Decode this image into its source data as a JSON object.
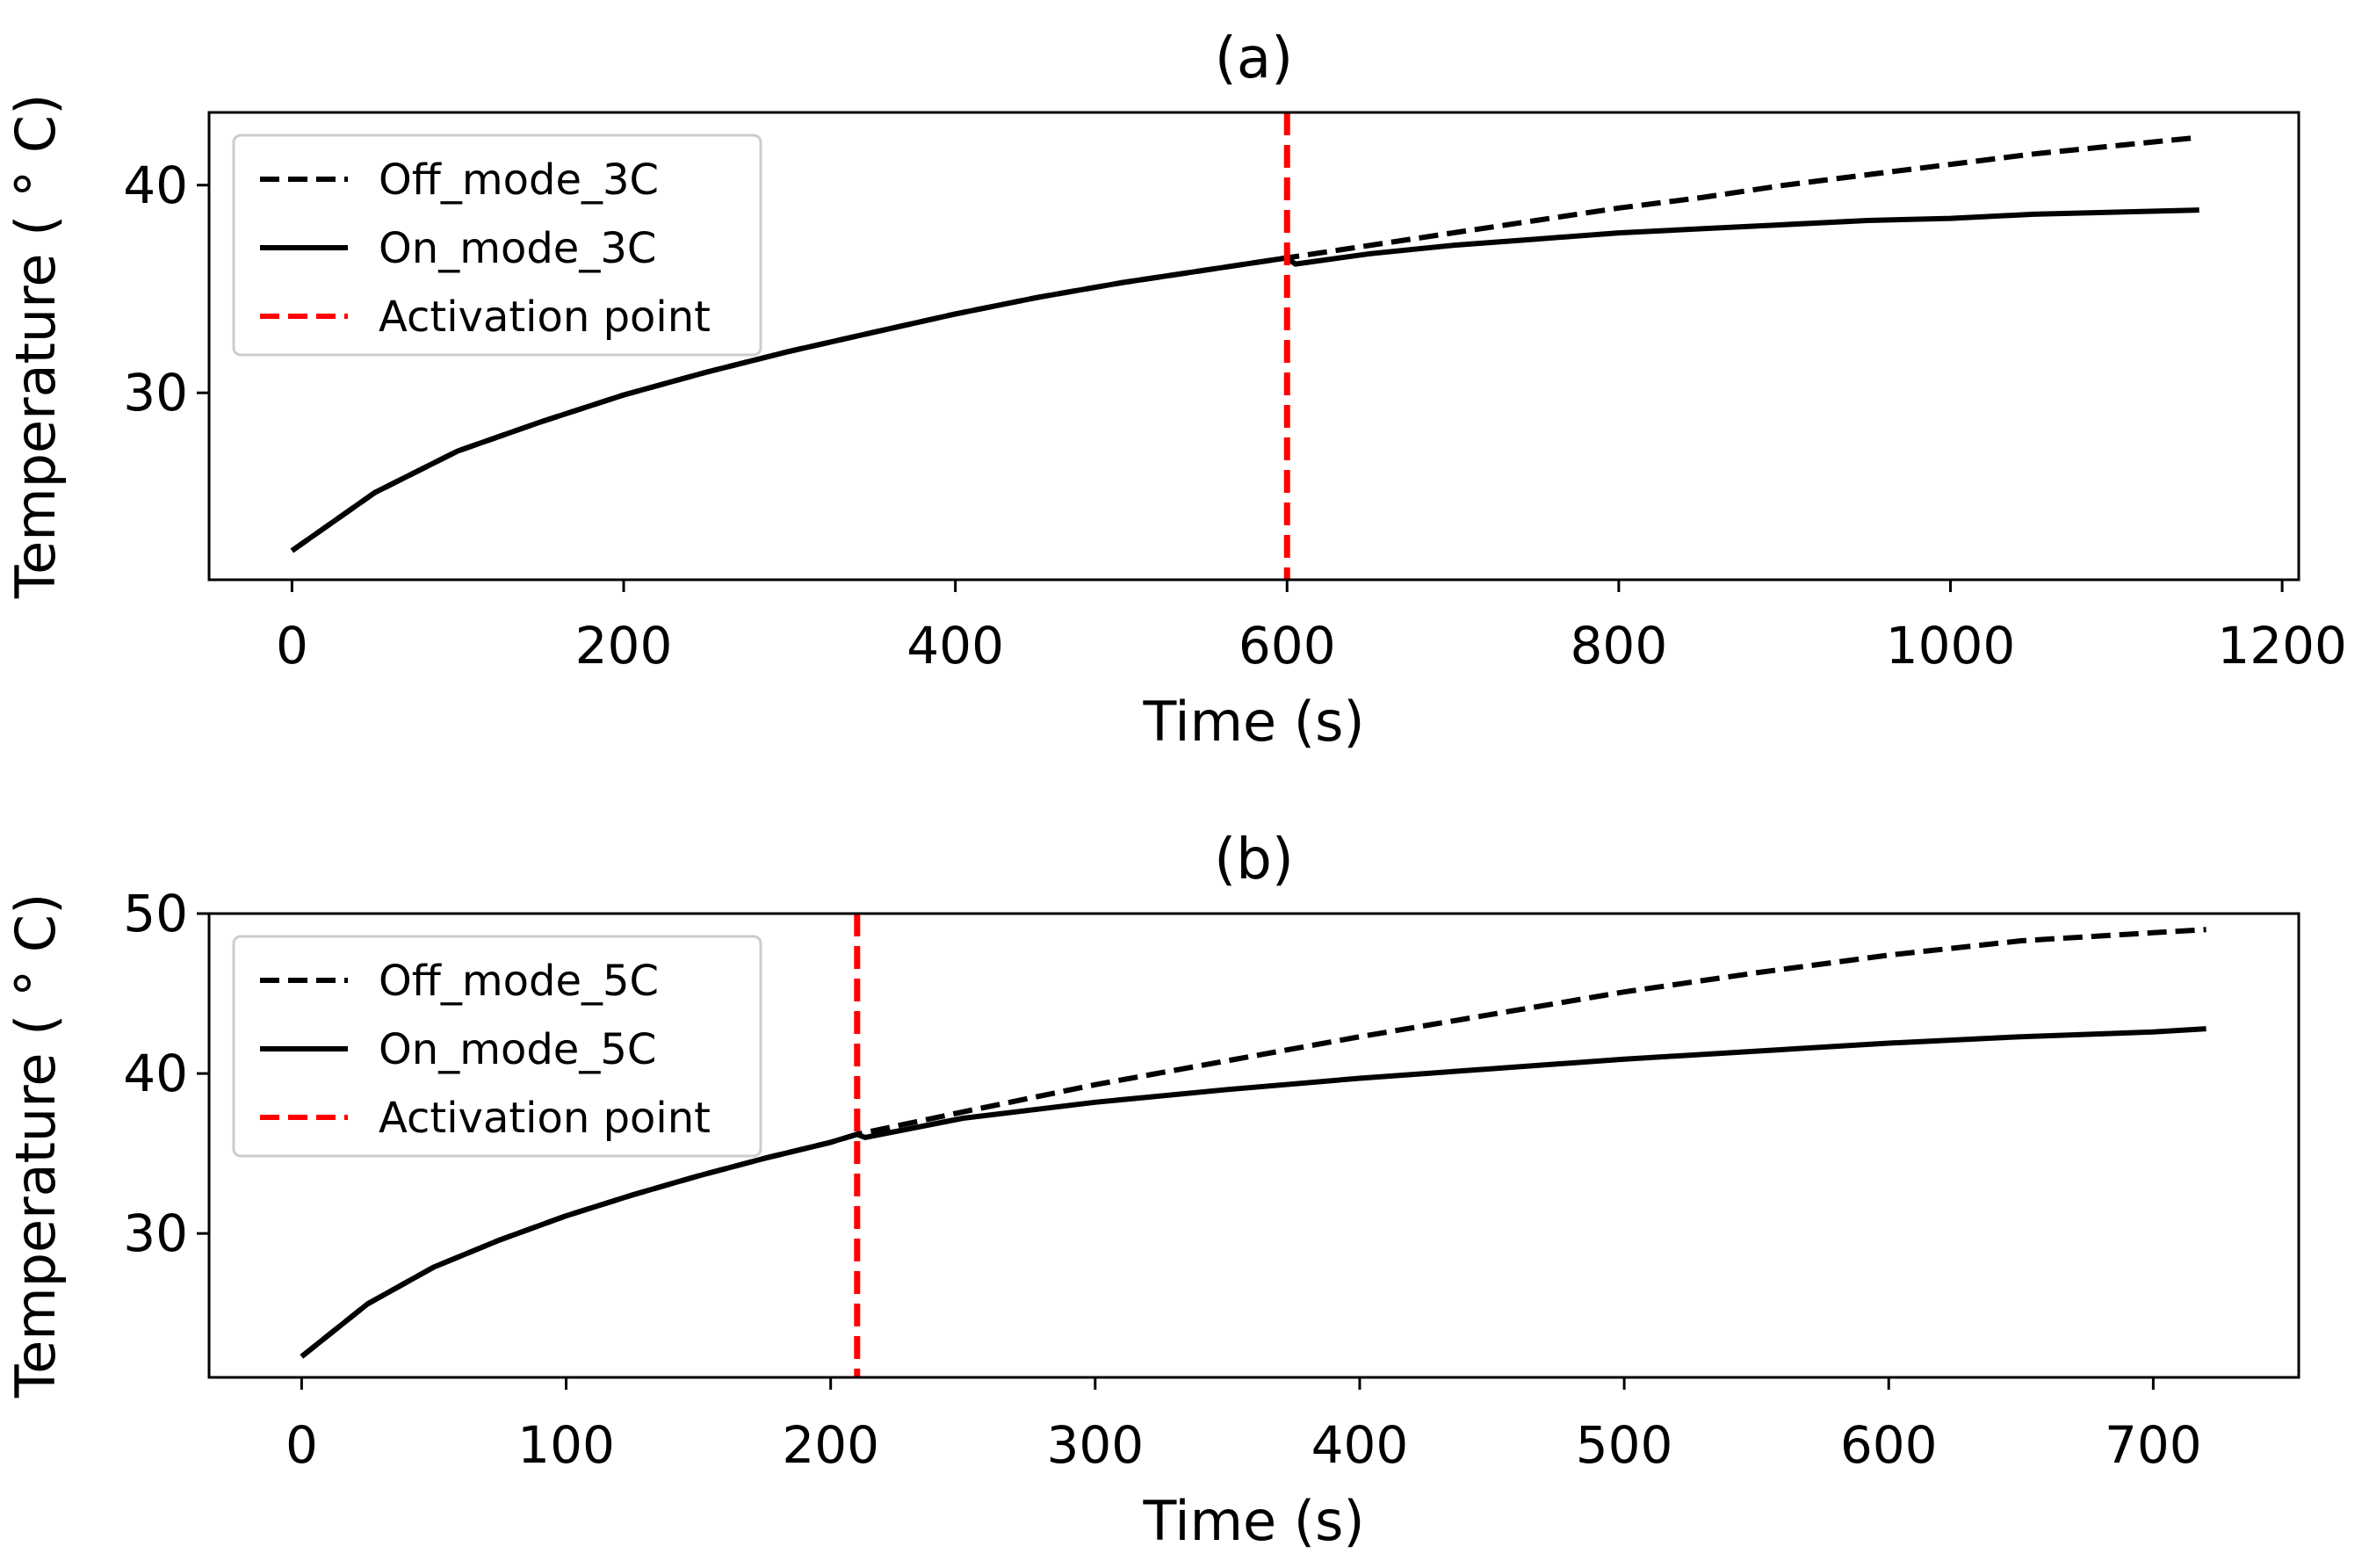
{
  "chart_data": [
    {
      "type": "line",
      "title": "(a)",
      "xlabel": "Time (s)",
      "ylabel": "Temperature ($^\\circ$C)",
      "ylabel_display": "Temperature ( ° C)",
      "xlim": [
        -50,
        1210
      ],
      "ylim": [
        21,
        43.5
      ],
      "xticks": [
        0,
        200,
        400,
        600,
        800,
        1000,
        1200
      ],
      "yticks": [
        30,
        40
      ],
      "activation_x": 600,
      "legend_position": "upper-left",
      "series": [
        {
          "name": "Off_mode_3C",
          "style": "dashed",
          "color": "#000000",
          "x": [
            0,
            50,
            100,
            150,
            200,
            250,
            300,
            350,
            400,
            450,
            500,
            550,
            600,
            650,
            700,
            750,
            800,
            850,
            900,
            950,
            1000,
            1050,
            1100,
            1150
          ],
          "y": [
            22.4,
            25.2,
            27.2,
            28.6,
            29.9,
            31.0,
            32.0,
            32.9,
            33.8,
            34.6,
            35.3,
            35.9,
            36.5,
            37.1,
            37.7,
            38.3,
            38.9,
            39.4,
            40.0,
            40.5,
            41.0,
            41.5,
            41.9,
            42.3
          ]
        },
        {
          "name": "On_mode_3C",
          "style": "solid",
          "color": "#000000",
          "x": [
            0,
            50,
            100,
            150,
            200,
            250,
            300,
            350,
            400,
            450,
            500,
            550,
            600,
            605,
            650,
            700,
            750,
            800,
            850,
            900,
            950,
            1000,
            1050,
            1100,
            1150
          ],
          "y": [
            22.4,
            25.2,
            27.2,
            28.6,
            29.9,
            31.0,
            32.0,
            32.9,
            33.8,
            34.6,
            35.3,
            35.9,
            36.5,
            36.2,
            36.7,
            37.1,
            37.4,
            37.7,
            37.9,
            38.1,
            38.3,
            38.4,
            38.6,
            38.7,
            38.8
          ]
        },
        {
          "name": "Activation point",
          "style": "dashed",
          "color": "#ff0000"
        }
      ]
    },
    {
      "type": "line",
      "title": "(b)",
      "xlabel": "Time (s)",
      "ylabel": "Temperature ($^\\circ$C)",
      "ylabel_display": "Temperature ( ° C)",
      "xlim": [
        -35,
        755
      ],
      "ylim": [
        21,
        50
      ],
      "xticks": [
        0,
        100,
        200,
        300,
        400,
        500,
        600,
        700
      ],
      "yticks": [
        30,
        40,
        50
      ],
      "activation_x": 210,
      "legend_position": "upper-left",
      "series": [
        {
          "name": "Off_mode_5C",
          "style": "dashed",
          "color": "#000000",
          "x": [
            0,
            25,
            50,
            75,
            100,
            125,
            150,
            175,
            200,
            210,
            250,
            300,
            350,
            400,
            450,
            500,
            550,
            600,
            650,
            700,
            720
          ],
          "y": [
            22.3,
            25.6,
            27.9,
            29.6,
            31.1,
            32.4,
            33.6,
            34.7,
            35.7,
            36.2,
            37.6,
            39.3,
            40.8,
            42.3,
            43.7,
            45.1,
            46.3,
            47.4,
            48.3,
            48.8,
            49.0
          ]
        },
        {
          "name": "On_mode_5C",
          "style": "solid",
          "color": "#000000",
          "x": [
            0,
            25,
            50,
            75,
            100,
            125,
            150,
            175,
            200,
            210,
            213,
            250,
            300,
            350,
            400,
            450,
            500,
            550,
            600,
            650,
            700,
            720
          ],
          "y": [
            22.3,
            25.6,
            27.9,
            29.6,
            31.1,
            32.4,
            33.6,
            34.7,
            35.7,
            36.2,
            36.0,
            37.2,
            38.2,
            39.0,
            39.7,
            40.3,
            40.9,
            41.4,
            41.9,
            42.3,
            42.6,
            42.8
          ]
        },
        {
          "name": "Activation point",
          "style": "dashed",
          "color": "#ff0000"
        }
      ]
    }
  ]
}
